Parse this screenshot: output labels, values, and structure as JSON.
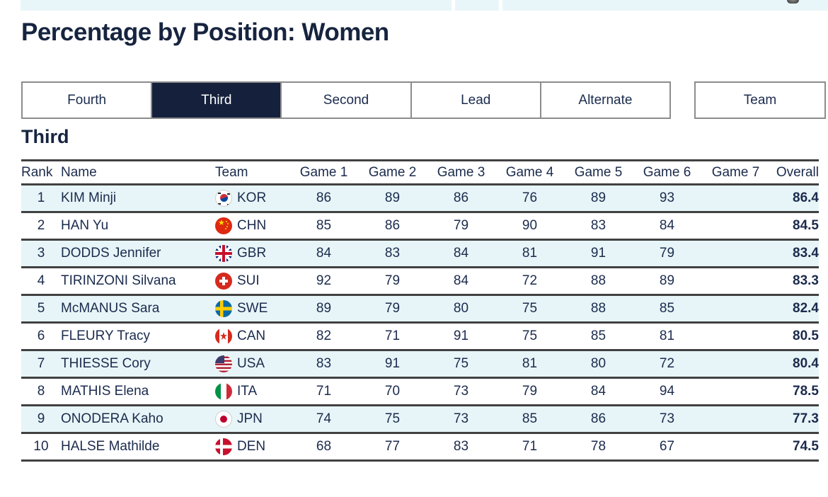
{
  "colors": {
    "accent_navy": "#15213c",
    "text_navy": "#1b2b4d",
    "row_highlight": "#e7f5f8",
    "header_bar": "#e9f6f9",
    "table_border": "#414141"
  },
  "page": {
    "title": "Percentage by Position: Women",
    "section_heading": "Third"
  },
  "tabs": {
    "items": [
      {
        "label": "Fourth",
        "active": false
      },
      {
        "label": "Third",
        "active": true
      },
      {
        "label": "Second",
        "active": false
      },
      {
        "label": "Lead",
        "active": false
      },
      {
        "label": "Alternate",
        "active": false
      }
    ],
    "team_label": "Team"
  },
  "table": {
    "headers": [
      "Rank",
      "Name",
      "Team",
      "Game 1",
      "Game 2",
      "Game 3",
      "Game 4",
      "Game 5",
      "Game 6",
      "Game 7",
      "Overall"
    ],
    "rows": [
      {
        "rank": "1",
        "name": "KIM Minji",
        "team": "KOR",
        "flag": "kor",
        "games": [
          "86",
          "89",
          "86",
          "76",
          "89",
          "93",
          ""
        ],
        "overall": "86.4"
      },
      {
        "rank": "2",
        "name": "HAN Yu",
        "team": "CHN",
        "flag": "chn",
        "games": [
          "85",
          "86",
          "79",
          "90",
          "83",
          "84",
          ""
        ],
        "overall": "84.5"
      },
      {
        "rank": "3",
        "name": "DODDS Jennifer",
        "team": "GBR",
        "flag": "gbr",
        "games": [
          "84",
          "83",
          "84",
          "81",
          "91",
          "79",
          ""
        ],
        "overall": "83.4"
      },
      {
        "rank": "4",
        "name": "TIRINZONI Silvana",
        "team": "SUI",
        "flag": "sui",
        "games": [
          "92",
          "79",
          "84",
          "72",
          "88",
          "89",
          ""
        ],
        "overall": "83.3"
      },
      {
        "rank": "5",
        "name": "McMANUS Sara",
        "team": "SWE",
        "flag": "swe",
        "games": [
          "89",
          "79",
          "80",
          "75",
          "88",
          "85",
          ""
        ],
        "overall": "82.4"
      },
      {
        "rank": "6",
        "name": "FLEURY Tracy",
        "team": "CAN",
        "flag": "can",
        "games": [
          "82",
          "71",
          "91",
          "75",
          "85",
          "81",
          ""
        ],
        "overall": "80.5"
      },
      {
        "rank": "7",
        "name": "THIESSE Cory",
        "team": "USA",
        "flag": "usa",
        "games": [
          "83",
          "91",
          "75",
          "81",
          "80",
          "72",
          ""
        ],
        "overall": "80.4"
      },
      {
        "rank": "8",
        "name": "MATHIS Elena",
        "team": "ITA",
        "flag": "ita",
        "games": [
          "71",
          "70",
          "73",
          "79",
          "84",
          "94",
          ""
        ],
        "overall": "78.5"
      },
      {
        "rank": "9",
        "name": "ONODERA Kaho",
        "team": "JPN",
        "flag": "jpn",
        "games": [
          "74",
          "75",
          "73",
          "85",
          "86",
          "73",
          ""
        ],
        "overall": "77.3"
      },
      {
        "rank": "10",
        "name": "HALSE Mathilde",
        "team": "DEN",
        "flag": "den",
        "games": [
          "68",
          "77",
          "83",
          "71",
          "78",
          "67",
          ""
        ],
        "overall": "74.5"
      }
    ]
  }
}
